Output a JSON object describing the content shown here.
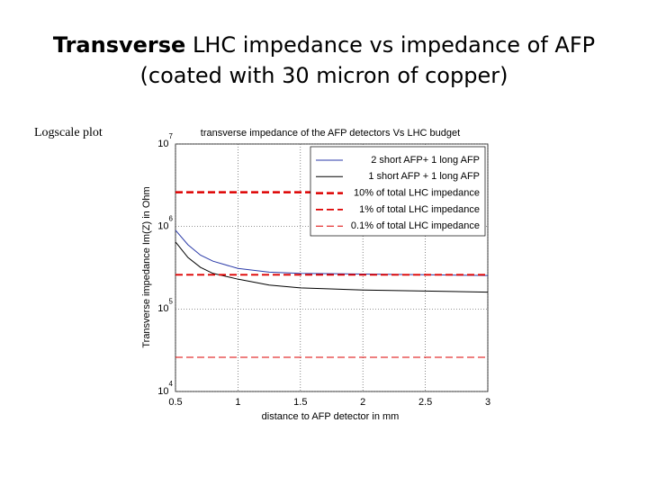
{
  "slide": {
    "title_bold": "Transverse",
    "title_line1": "LHC impedance vs impedance of AFP",
    "title_line2": "(coated with 30 micron of copper)",
    "side_label": "Logscale plot"
  },
  "chart_data": {
    "type": "line",
    "title": "transverse impedance of the AFP detectors Vs LHC budget",
    "xlabel": "distance to AFP detector in mm",
    "ylabel": "Transverse impedance Im(Z) in Ohm",
    "x": [
      0.5,
      0.6,
      0.7,
      0.8,
      1,
      1.25,
      1.5,
      2,
      2.5,
      3
    ],
    "xlim": [
      0.5,
      3
    ],
    "xticks": [
      0.5,
      1,
      1.5,
      2,
      2.5,
      3
    ],
    "ylim": [
      10000,
      10000000
    ],
    "ylog": true,
    "yticks": [
      {
        "value": 10000,
        "label": "10",
        "exponent": "4"
      },
      {
        "value": 100000,
        "label": "10",
        "exponent": "5"
      },
      {
        "value": 1000000,
        "label": "10",
        "exponent": "6"
      },
      {
        "value": 10000000,
        "label": "10",
        "exponent": "7"
      }
    ],
    "grid": true,
    "legend": "upper right",
    "series": [
      {
        "name": "2 short AFP+ 1 long AFP",
        "color": "#2a3aa8",
        "linestyle": "solid",
        "linewidth": 1,
        "values": [
          900000,
          600000,
          450000,
          380000,
          310000,
          280000,
          270000,
          265000,
          260000,
          255000
        ]
      },
      {
        "name": "1 short AFP + 1 long AFP",
        "color": "#000000",
        "linestyle": "solid",
        "linewidth": 1,
        "values": [
          650000,
          420000,
          320000,
          270000,
          230000,
          195000,
          180000,
          170000,
          165000,
          160000
        ]
      },
      {
        "name": "10% of total LHC impedance",
        "color": "#dd0000",
        "linestyle": "dashed",
        "linewidth": 2.5,
        "values": [
          2600000,
          2600000,
          2600000,
          2600000,
          2600000,
          2600000,
          2600000,
          2600000,
          2600000,
          2600000
        ]
      },
      {
        "name": "1% of total LHC impedance",
        "color": "#dd0000",
        "linestyle": "dashed",
        "linewidth": 1.8,
        "values": [
          260000,
          260000,
          260000,
          260000,
          260000,
          260000,
          260000,
          260000,
          260000,
          260000
        ]
      },
      {
        "name": "0.1% of total LHC impedance",
        "color": "#dd0000",
        "linestyle": "dashed",
        "linewidth": 1,
        "values": [
          26000,
          26000,
          26000,
          26000,
          26000,
          26000,
          26000,
          26000,
          26000,
          26000
        ]
      }
    ]
  }
}
